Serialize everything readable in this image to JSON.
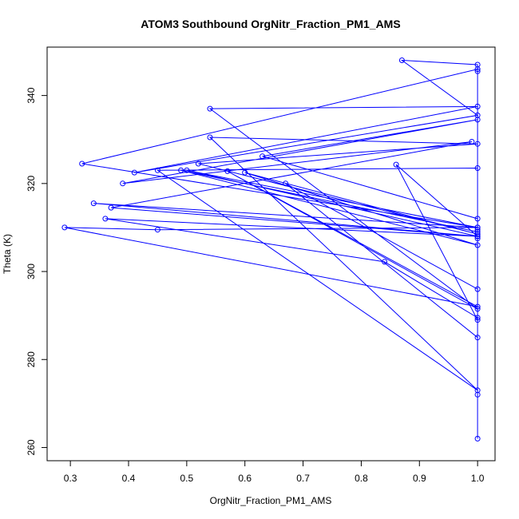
{
  "chart_data": {
    "type": "scatter",
    "title": "ATOM3 Southbound OrgNitr_Fraction_PM1_AMS",
    "xlabel": "OrgNitr_Fraction_PM1_AMS",
    "ylabel": "Theta (K)",
    "xlim": [
      0.26,
      1.03
    ],
    "ylim": [
      257,
      351
    ],
    "xticks": [
      "0.3",
      "0.4",
      "0.5",
      "0.6",
      "0.7",
      "0.8",
      "0.9",
      "1.0"
    ],
    "yticks": [
      "260",
      "280",
      "300",
      "320",
      "340"
    ],
    "grid": false,
    "legend": "none",
    "series": [
      {
        "color": "#0000ff",
        "x": [
          1.0,
          1.0,
          1.0,
          1.0,
          1.0,
          0.32,
          1.0,
          0.5,
          1.0,
          0.34,
          1.0,
          0.45,
          0.29,
          1.0,
          0.57,
          1.0,
          0.54,
          1.0,
          0.41,
          1.0,
          0.87,
          1.0,
          1.0,
          1.0,
          0.63,
          1.0,
          0.39,
          0.99,
          0.37,
          1.0,
          0.36,
          0.84,
          1.0,
          1.0,
          0.49,
          1.0,
          0.6,
          1.0,
          0.52,
          1.0,
          0.54,
          1.0,
          0.45,
          1.0,
          1.0,
          0.86,
          1.0,
          1.0,
          1.0,
          0.67,
          1.0
        ],
        "y": [
          262,
          272,
          309.5,
          308.5,
          346,
          324.5,
          310,
          323,
          308,
          315.5,
          310,
          309.5,
          310,
          292,
          322.8,
          291.5,
          337,
          337.5,
          322.5,
          335.5,
          348,
          347,
          345.5,
          312,
          326.2,
          334.5,
          320,
          329.5,
          314.5,
          308,
          312,
          302.2,
          289.5,
          309,
          323,
          306,
          322.5,
          308.5,
          324.5,
          329,
          330.5,
          273,
          323,
          323.5,
          308,
          324.3,
          289,
          307.5,
          285,
          320,
          296
        ]
      }
    ]
  }
}
